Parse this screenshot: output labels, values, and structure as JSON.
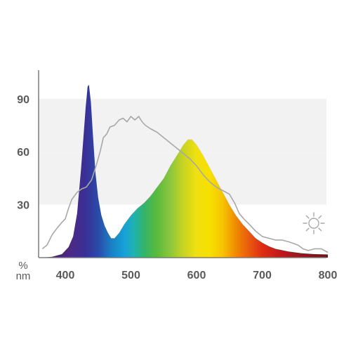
{
  "chart_data": {
    "type": "area",
    "title": "",
    "xlabel": "nm",
    "ylabel": "%",
    "xlim": [
      360,
      800
    ],
    "ylim": [
      0,
      100
    ],
    "x_ticks": [
      "400",
      "500",
      "600",
      "700",
      "800"
    ],
    "y_ticks": [
      "30",
      "60",
      "90"
    ],
    "grid": "horizontal bands",
    "legend": "none",
    "colors": {
      "axis": "#7a7a7a",
      "band": "#f2f2f2",
      "daylight_line": "#a8a8a8",
      "text": "#5a5a5a"
    },
    "icons": [
      "sun-icon"
    ],
    "series": [
      {
        "values": [
          [
            365,
            0
          ],
          [
            380,
            0.5
          ],
          [
            395,
            2
          ],
          [
            405,
            6
          ],
          [
            412,
            12
          ],
          [
            418,
            25
          ],
          [
            424,
            50
          ],
          [
            428,
            70
          ],
          [
            431,
            85
          ],
          [
            434,
            97
          ],
          [
            436,
            98
          ],
          [
            439,
            88
          ],
          [
            442,
            70
          ],
          [
            446,
            48
          ],
          [
            450,
            34
          ],
          [
            455,
            24
          ],
          [
            460,
            18
          ],
          [
            465,
            14
          ],
          [
            470,
            11
          ],
          [
            475,
            11
          ],
          [
            482,
            14
          ],
          [
            490,
            19
          ],
          [
            500,
            24
          ],
          [
            510,
            28
          ],
          [
            520,
            31
          ],
          [
            530,
            35
          ],
          [
            540,
            40
          ],
          [
            550,
            45
          ],
          [
            560,
            52
          ],
          [
            570,
            58
          ],
          [
            580,
            64
          ],
          [
            587,
            67
          ],
          [
            593,
            67
          ],
          [
            600,
            64
          ],
          [
            610,
            58
          ],
          [
            620,
            51
          ],
          [
            630,
            44
          ],
          [
            640,
            37
          ],
          [
            650,
            30
          ],
          [
            660,
            24
          ],
          [
            670,
            19
          ],
          [
            680,
            15
          ],
          [
            690,
            11
          ],
          [
            700,
            8.5
          ],
          [
            710,
            6.5
          ],
          [
            720,
            5
          ],
          [
            740,
            3.5
          ],
          [
            760,
            2.5
          ],
          [
            780,
            2
          ],
          [
            800,
            1.8
          ]
        ]
      },
      {
        "values": [
          [
            365,
            5
          ],
          [
            372,
            7
          ],
          [
            380,
            13
          ],
          [
            388,
            17
          ],
          [
            395,
            20
          ],
          [
            400,
            22
          ],
          [
            405,
            28
          ],
          [
            410,
            33
          ],
          [
            418,
            37
          ],
          [
            425,
            39
          ],
          [
            432,
            40
          ],
          [
            440,
            44
          ],
          [
            447,
            52
          ],
          [
            453,
            60
          ],
          [
            458,
            68
          ],
          [
            463,
            70
          ],
          [
            468,
            74
          ],
          [
            475,
            75
          ],
          [
            482,
            78
          ],
          [
            488,
            79
          ],
          [
            494,
            77
          ],
          [
            500,
            80
          ],
          [
            506,
            78
          ],
          [
            512,
            80
          ],
          [
            517,
            77
          ],
          [
            522,
            75
          ],
          [
            530,
            73
          ],
          [
            540,
            71
          ],
          [
            550,
            68
          ],
          [
            560,
            65
          ],
          [
            570,
            62
          ],
          [
            580,
            59
          ],
          [
            590,
            56
          ],
          [
            600,
            52
          ],
          [
            610,
            47
          ],
          [
            620,
            43
          ],
          [
            630,
            40
          ],
          [
            640,
            38
          ],
          [
            650,
            36
          ],
          [
            658,
            31
          ],
          [
            665,
            25
          ],
          [
            672,
            22
          ],
          [
            680,
            19
          ],
          [
            690,
            15
          ],
          [
            700,
            12
          ],
          [
            710,
            11
          ],
          [
            720,
            10
          ],
          [
            730,
            10
          ],
          [
            740,
            9
          ],
          [
            748,
            8
          ],
          [
            755,
            7
          ],
          [
            762,
            5
          ],
          [
            770,
            4
          ],
          [
            780,
            5
          ],
          [
            790,
            5
          ],
          [
            800,
            3
          ]
        ]
      }
    ]
  }
}
